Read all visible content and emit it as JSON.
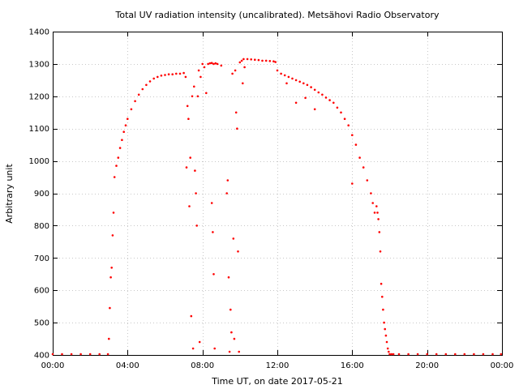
{
  "chart_data": {
    "type": "scatter",
    "title": "Total UV radiation intensity (uncalibrated). Metsähovi Radio Observatory",
    "xlabel": "Time UT, on date 2017-05-21",
    "ylabel": "Arbitrary unit",
    "xlim": [
      0,
      24
    ],
    "ylim": [
      400,
      1400
    ],
    "grid": true,
    "marker_color": "#ff0000",
    "x_ticks": [
      {
        "value": 0,
        "label": "00:00"
      },
      {
        "value": 4,
        "label": "04:00"
      },
      {
        "value": 8,
        "label": "08:00"
      },
      {
        "value": 12,
        "label": "12:00"
      },
      {
        "value": 16,
        "label": "16:00"
      },
      {
        "value": 20,
        "label": "20:00"
      },
      {
        "value": 24,
        "label": "00:00"
      }
    ],
    "y_ticks": [
      {
        "value": 400,
        "label": "400"
      },
      {
        "value": 500,
        "label": "500"
      },
      {
        "value": 600,
        "label": "600"
      },
      {
        "value": 700,
        "label": "700"
      },
      {
        "value": 800,
        "label": "800"
      },
      {
        "value": 900,
        "label": "900"
      },
      {
        "value": 1000,
        "label": "1000"
      },
      {
        "value": 1100,
        "label": "1100"
      },
      {
        "value": 1200,
        "label": "1200"
      },
      {
        "value": 1300,
        "label": "1300"
      },
      {
        "value": 1400,
        "label": "1400"
      }
    ],
    "series": [
      {
        "x": [
          0.0,
          0.5,
          1.0,
          1.5,
          2.0,
          2.5,
          2.95,
          3.0,
          3.05,
          3.1,
          3.15,
          3.2,
          3.25,
          3.3,
          3.4,
          3.5,
          3.6,
          3.7,
          3.8,
          3.9,
          4.0,
          4.2,
          4.4,
          4.6,
          4.8,
          5.0,
          5.2,
          5.4,
          5.6,
          5.8,
          6.0,
          6.2,
          6.4,
          6.6,
          6.8,
          7.0,
          7.1,
          7.15,
          7.2,
          7.25,
          7.3,
          7.35,
          7.4,
          7.45,
          7.5,
          7.55,
          7.6,
          7.65,
          7.7,
          7.75,
          7.8,
          7.85,
          7.9,
          8.0,
          8.1,
          8.2,
          8.3,
          8.4,
          8.5,
          8.6,
          8.7,
          8.8,
          9.0,
          8.5,
          8.55,
          8.6,
          8.65,
          9.3,
          9.35,
          9.4,
          9.45,
          9.5,
          9.55,
          9.6,
          9.65,
          9.7,
          9.75,
          9.8,
          9.85,
          9.9,
          9.95,
          10.0,
          10.1,
          10.2,
          10.4,
          10.6,
          10.8,
          11.0,
          11.2,
          11.4,
          11.6,
          11.8,
          11.9,
          10.15,
          10.25,
          12.0,
          12.2,
          12.4,
          12.6,
          12.8,
          13.0,
          13.2,
          13.4,
          13.6,
          13.8,
          14.0,
          14.2,
          14.4,
          14.6,
          14.8,
          12.5,
          13.0,
          13.5,
          14.0,
          15.0,
          15.2,
          15.4,
          15.6,
          15.8,
          16.0,
          16.2,
          16.4,
          16.6,
          16.8,
          17.0,
          17.1,
          17.2,
          16.0,
          17.3,
          17.35,
          17.4,
          17.45,
          17.5,
          17.55,
          17.6,
          17.65,
          17.7,
          17.75,
          17.8,
          17.85,
          17.9,
          17.95,
          18.0,
          18.1,
          18.2,
          18.5,
          19.0,
          19.5,
          20.0,
          20.5,
          21.0,
          21.5,
          22.0,
          22.5,
          23.0,
          23.5,
          23.95
        ],
        "y": [
          402,
          402,
          402,
          402,
          402,
          402,
          402,
          450,
          545,
          640,
          670,
          770,
          840,
          950,
          985,
          1010,
          1040,
          1065,
          1090,
          1110,
          1130,
          1160,
          1185,
          1205,
          1222,
          1235,
          1246,
          1255,
          1260,
          1264,
          1266,
          1268,
          1268,
          1270,
          1270,
          1272,
          1260,
          980,
          1170,
          1130,
          860,
          1010,
          520,
          1200,
          420,
          1230,
          970,
          900,
          800,
          1200,
          1280,
          440,
          1260,
          1300,
          1290,
          1210,
          1300,
          1302,
          1303,
          1300,
          1302,
          1300,
          1295,
          870,
          780,
          650,
          420,
          900,
          940,
          640,
          410,
          540,
          470,
          1270,
          760,
          450,
          1280,
          1150,
          1100,
          720,
          410,
          1305,
          1310,
          1315,
          1315,
          1314,
          1313,
          1312,
          1310,
          1310,
          1309,
          1308,
          1306,
          1240,
          1290,
          1280,
          1270,
          1265,
          1260,
          1255,
          1250,
          1245,
          1240,
          1235,
          1228,
          1220,
          1212,
          1205,
          1196,
          1188,
          1240,
          1180,
          1195,
          1160,
          1180,
          1165,
          1150,
          1130,
          1110,
          1080,
          1050,
          1010,
          980,
          940,
          900,
          870,
          840,
          930,
          860,
          840,
          820,
          780,
          720,
          620,
          580,
          540,
          500,
          480,
          460,
          440,
          420,
          410,
          402,
          401,
          402,
          402,
          402,
          402,
          402,
          402,
          402,
          402,
          402,
          402,
          402,
          402,
          402
        ]
      }
    ]
  }
}
